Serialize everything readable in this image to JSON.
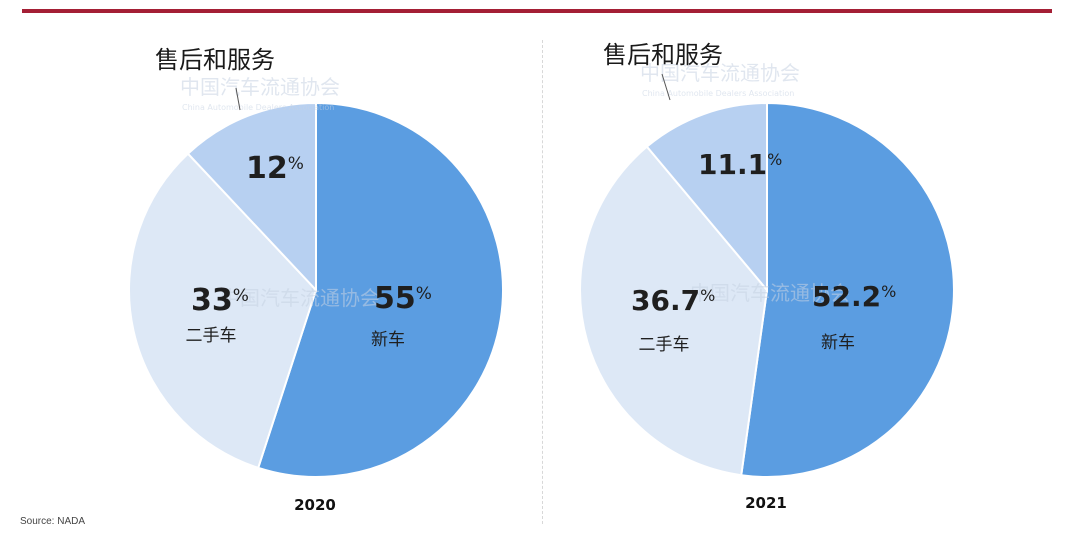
{
  "source": "Source: NADA",
  "colors": {
    "new": "#5b9de1",
    "used": "#dde8f6",
    "service": "#b7d0f1",
    "bar": "#a41f35"
  },
  "watermark": {
    "cn": "中国汽车流通协会",
    "en": "China Automobile Dealers Association"
  },
  "chart_data": [
    {
      "type": "pie",
      "title": "2020",
      "start_angle_deg": 0,
      "direction": "clockwise",
      "slices": [
        {
          "key": "new",
          "label": "新车",
          "value": 55,
          "display": "55",
          "color": "#5b9de1"
        },
        {
          "key": "used",
          "label": "二手车",
          "value": 33,
          "display": "33",
          "color": "#dde8f6"
        },
        {
          "key": "service",
          "label": "售后和服务",
          "value": 12,
          "display": "12",
          "color": "#b7d0f1"
        }
      ]
    },
    {
      "type": "pie",
      "title": "2021",
      "start_angle_deg": 0,
      "direction": "clockwise",
      "slices": [
        {
          "key": "new",
          "label": "新车",
          "value": 52.2,
          "display": "52.2",
          "color": "#5b9de1"
        },
        {
          "key": "used",
          "label": "二手车",
          "value": 36.7,
          "display": "36.7",
          "color": "#dde8f6"
        },
        {
          "key": "service",
          "label": "售后和服务",
          "value": 11.1,
          "display": "11.1",
          "color": "#b7d0f1"
        }
      ]
    }
  ]
}
